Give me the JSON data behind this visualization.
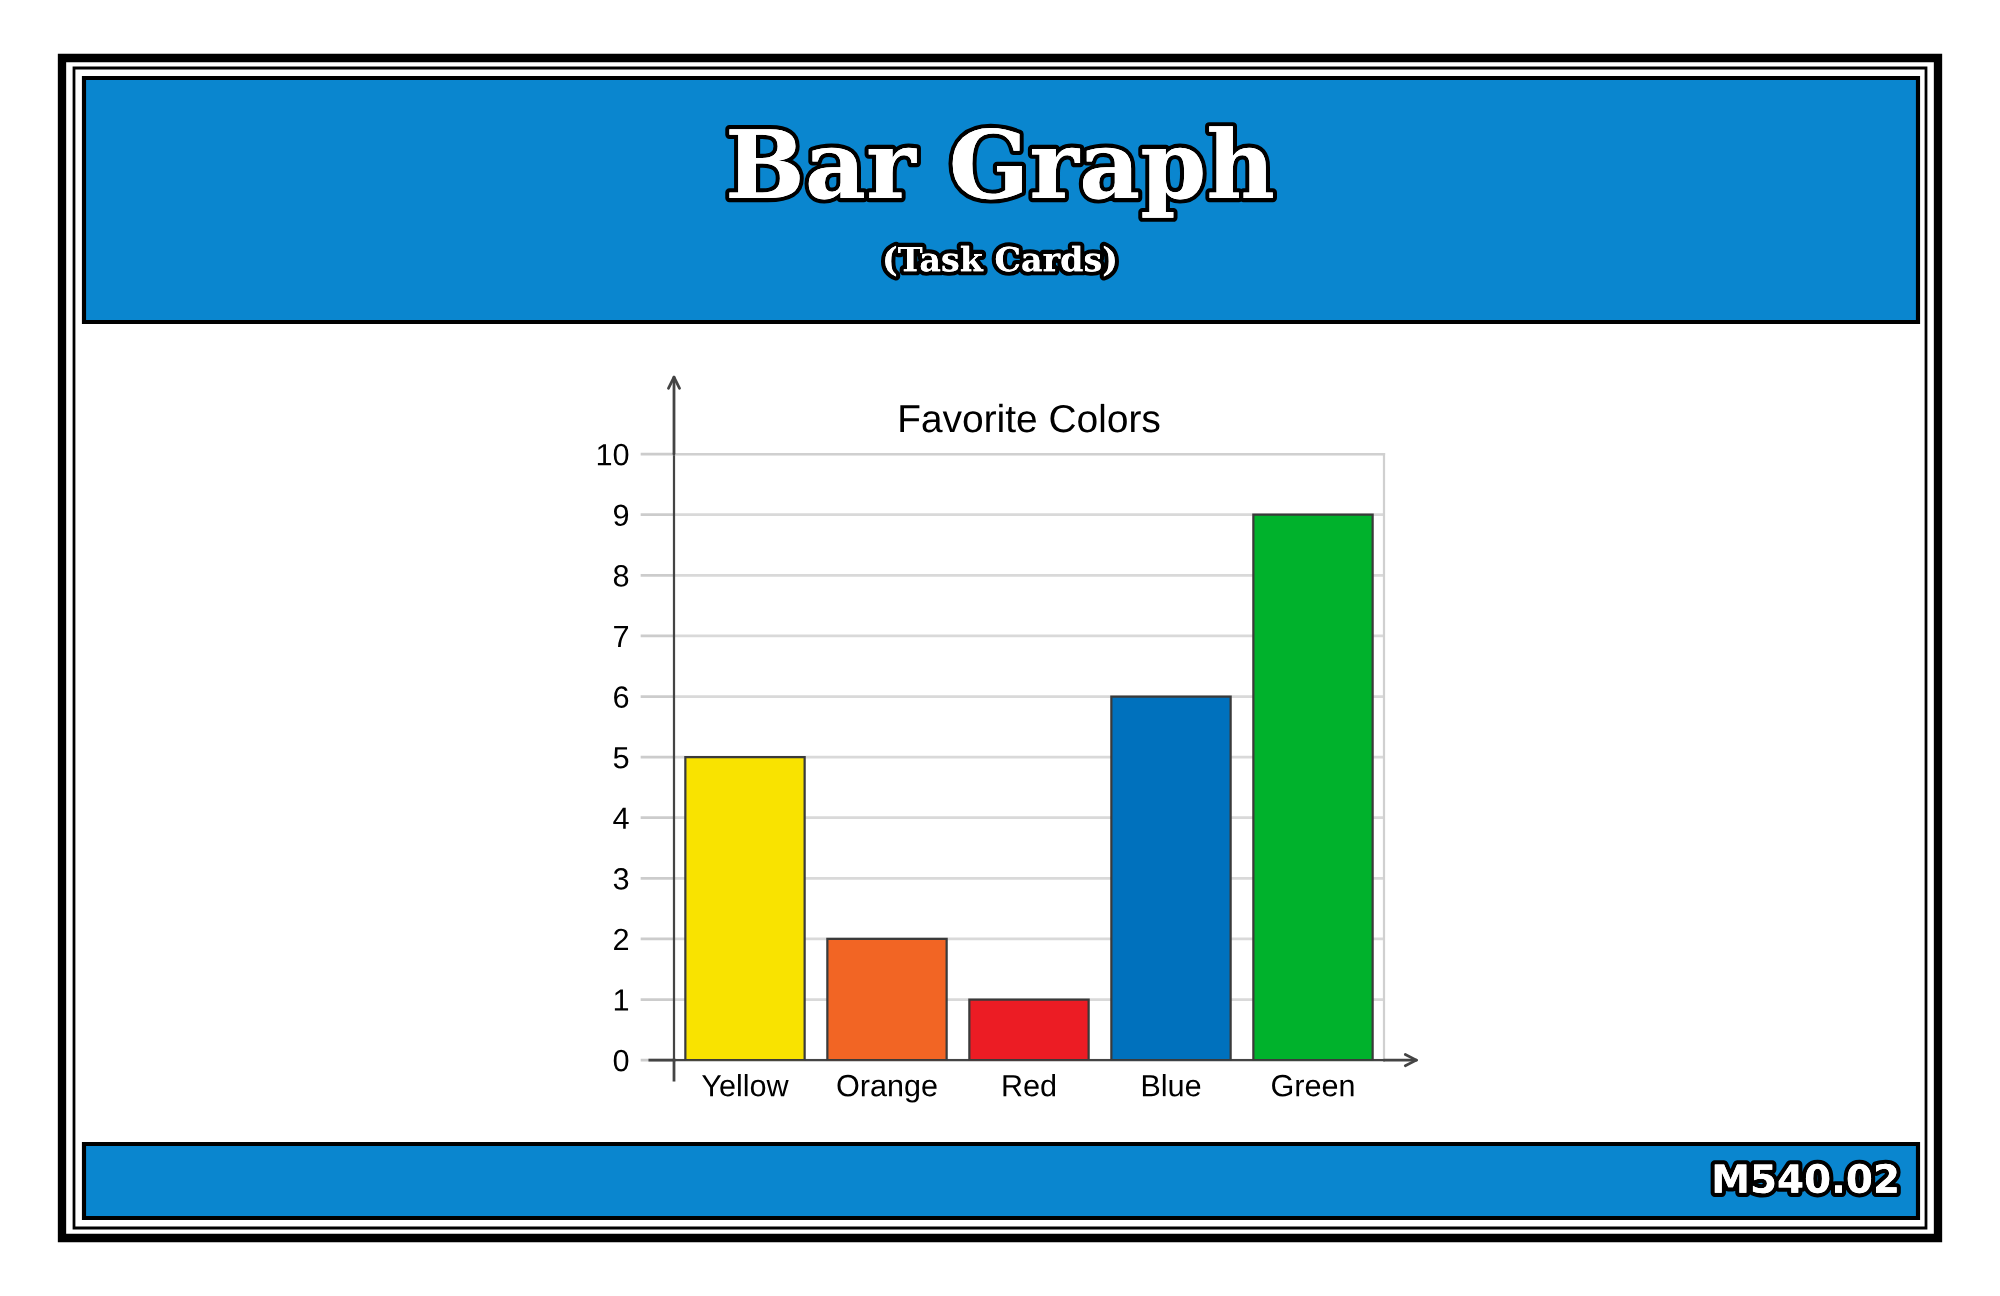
{
  "chart_data": {
    "type": "bar",
    "title": "Bar Graph",
    "subtitle": "(Task Cards)",
    "annotations": [
      "Favorite Colors",
      "M540.02"
    ],
    "categories": [
      "Yellow",
      "Orange",
      "Red",
      "Blue",
      "Green"
    ],
    "values": [
      5,
      2,
      1,
      6,
      9
    ],
    "colors": [
      "#f9e300",
      "#f26524",
      "#ec1c24",
      "#0071bd",
      "#00b22c"
    ],
    "ylim": [
      0,
      10
    ],
    "yticks": [
      0,
      1,
      2,
      3,
      4,
      5,
      6,
      7,
      8,
      9,
      10
    ],
    "grid": "y"
  }
}
